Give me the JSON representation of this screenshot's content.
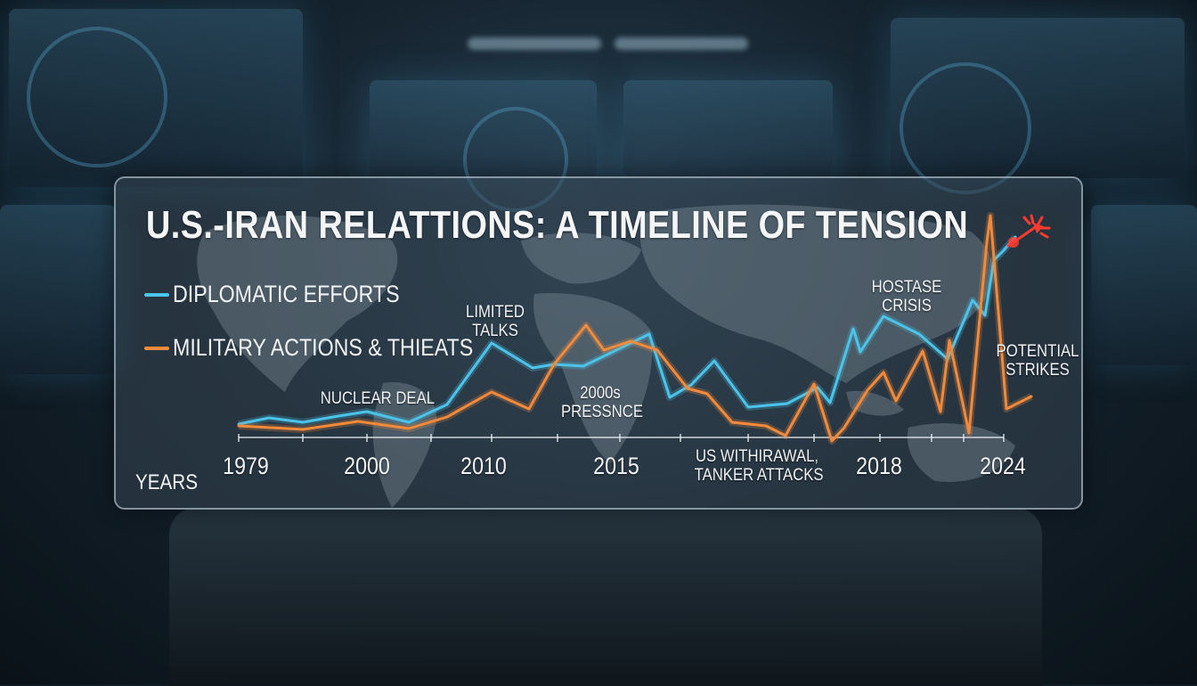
{
  "chart_data": {
    "type": "line",
    "title": "U.S.-IRAN RELATTIONS: A TIMELINE OF TENSION",
    "xlabel": "YEARS",
    "ylabel": "",
    "x_tick_labels": [
      "1979",
      "2000",
      "2010",
      "2015",
      "2018",
      "2024"
    ],
    "legend_placement": "top-left",
    "grid": false,
    "series": [
      {
        "name": "DIPLOMATIC EFFORTS",
        "color": "#4cc4ea",
        "points": [
          [
            266,
            474
          ],
          [
            300,
            467
          ],
          [
            338,
            472
          ],
          [
            372,
            466
          ],
          [
            410,
            460
          ],
          [
            457,
            472
          ],
          [
            500,
            452
          ],
          [
            550,
            383
          ],
          [
            596,
            411
          ],
          [
            620,
            407
          ],
          [
            653,
            409
          ],
          [
            727,
            373
          ],
          [
            750,
            444
          ],
          [
            774,
            430
          ],
          [
            800,
            403
          ],
          [
            838,
            455
          ],
          [
            882,
            451
          ],
          [
            916,
            433
          ],
          [
            930,
            450
          ],
          [
            956,
            367
          ],
          [
            964,
            393
          ],
          [
            990,
            353
          ],
          [
            1030,
            373
          ],
          [
            1062,
            401
          ],
          [
            1090,
            335
          ],
          [
            1104,
            352
          ],
          [
            1114,
            290
          ],
          [
            1124,
            280
          ],
          [
            1138,
            264
          ]
        ]
      },
      {
        "name": "MILITARY ACTIONS & THIEATS",
        "color": "#f28a3c",
        "points": [
          [
            266,
            476
          ],
          [
            338,
            480
          ],
          [
            400,
            471
          ],
          [
            457,
            479
          ],
          [
            500,
            466
          ],
          [
            550,
            438
          ],
          [
            592,
            457
          ],
          [
            620,
            407
          ],
          [
            656,
            363
          ],
          [
            676,
            391
          ],
          [
            706,
            381
          ],
          [
            736,
            391
          ],
          [
            770,
            434
          ],
          [
            792,
            440
          ],
          [
            820,
            472
          ],
          [
            858,
            476
          ],
          [
            880,
            487
          ],
          [
            912,
            429
          ],
          [
            932,
            493
          ],
          [
            946,
            478
          ],
          [
            972,
            436
          ],
          [
            990,
            416
          ],
          [
            1004,
            448
          ],
          [
            1034,
            392
          ],
          [
            1054,
            460
          ],
          [
            1064,
            380
          ],
          [
            1086,
            484
          ],
          [
            1106,
            270
          ],
          [
            1110,
            240
          ],
          [
            1128,
            457
          ],
          [
            1156,
            443
          ]
        ]
      }
    ],
    "annotations": [
      {
        "lines": [
          "LIMITED",
          "TALKS"
        ]
      },
      {
        "lines": [
          "NUCLEAR DEAL"
        ]
      },
      {
        "lines": [
          "2000s",
          "PRESSNCE"
        ]
      },
      {
        "lines": [
          "HOSTASE",
          "CRISIS"
        ]
      },
      {
        "lines": [
          "POTENTIAL",
          "STRIKES"
        ]
      },
      {
        "lines": [
          "US WITHIRAWAL,",
          "TANKER ATTACKS"
        ]
      }
    ]
  }
}
